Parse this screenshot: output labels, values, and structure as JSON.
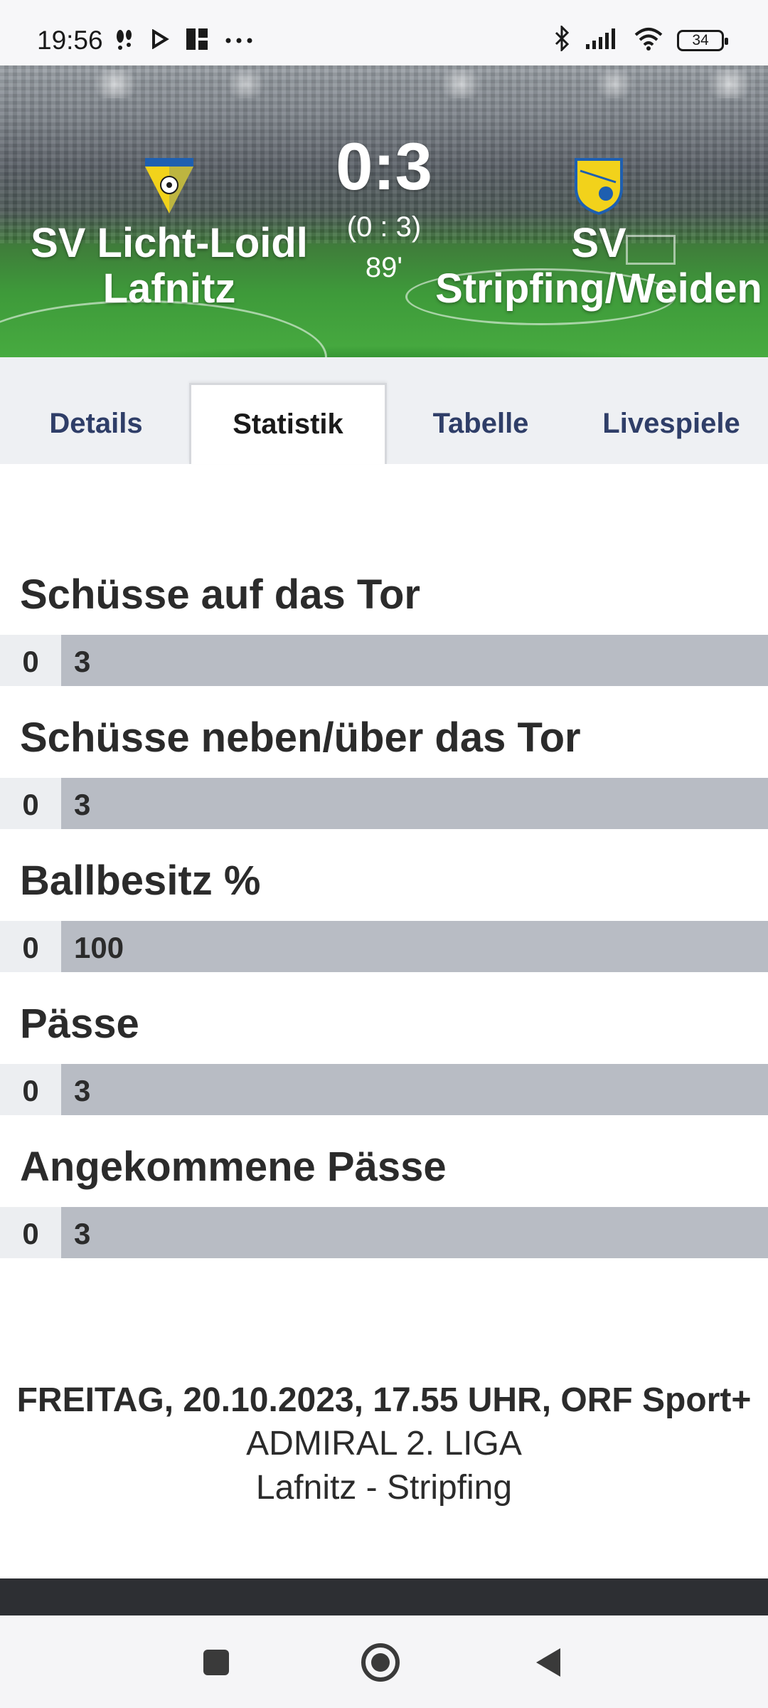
{
  "status_bar": {
    "time": "19:56",
    "left_icons": [
      "notification-icon",
      "play-icon",
      "app-icon",
      "more-icon"
    ],
    "right_icons": [
      "bluetooth-icon",
      "signal-icon",
      "wifi-icon"
    ],
    "battery": "34"
  },
  "match": {
    "home_team": "SV Licht-Loidl Lafnitz",
    "away_team": "SV Stripfing/Weiden",
    "score": "0:3",
    "halftime": "(0 : 3)",
    "minute": "89'"
  },
  "tabs": [
    {
      "label": "Details",
      "active": false
    },
    {
      "label": "Statistik",
      "active": true
    },
    {
      "label": "Tabelle",
      "active": false
    },
    {
      "label": "Livespiele",
      "active": false
    }
  ],
  "stats": [
    {
      "title": "Schüsse auf das Tor",
      "home": "0",
      "away": "3"
    },
    {
      "title": "Schüsse neben/über das Tor",
      "home": "0",
      "away": "3"
    },
    {
      "title": "Ballbesitz %",
      "home": "0",
      "away": "100"
    },
    {
      "title": "Pässe",
      "home": "0",
      "away": "3"
    },
    {
      "title": "Angekommene Pässe",
      "home": "0",
      "away": "3"
    }
  ],
  "match_info": {
    "date_line": "FREITAG, 20.10.2023, 17.55 UHR, ORF Sport+",
    "league": "ADMIRAL 2. LIGA",
    "teams": "Lafnitz - Stripfing"
  },
  "colors": {
    "tab_text": "#2f3e68",
    "bar_fill": "#b8bcc4",
    "bar_bg": "#eceef1",
    "header_green": "#3e9a3a"
  }
}
